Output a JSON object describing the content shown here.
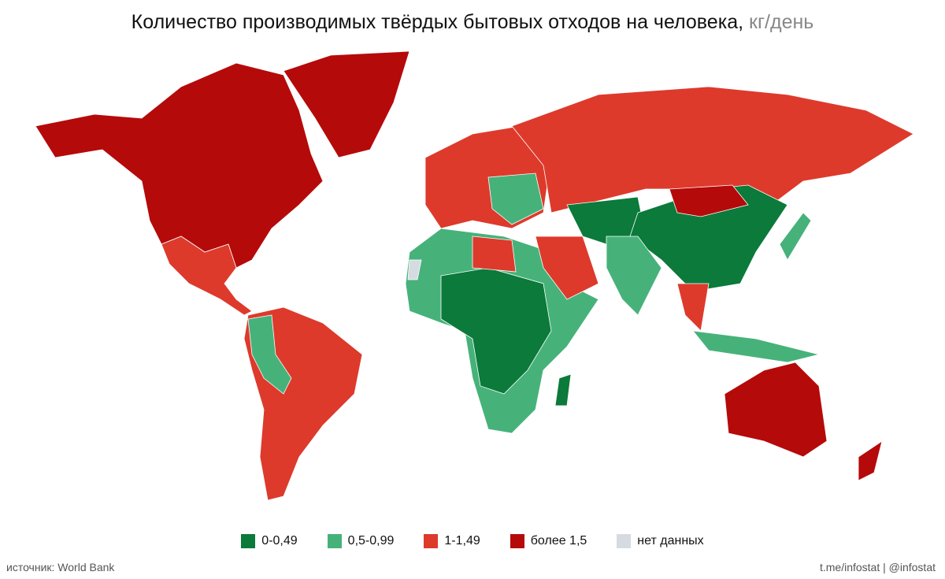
{
  "title": {
    "main": "Количество производимых твёрдых бытовых отходов на человека,",
    "unit": "кг/день"
  },
  "legend": {
    "items": [
      {
        "label": "0-0,49",
        "color": "#0b7a3a"
      },
      {
        "label": "0,5-0,99",
        "color": "#46b27a"
      },
      {
        "label": "1-1,49",
        "color": "#dd3a2c"
      },
      {
        "label": "более 1,5",
        "color": "#b50a0a"
      },
      {
        "label": "нет данных",
        "color": "#d5dbe0"
      }
    ]
  },
  "footer": {
    "source": "источник: World Bank",
    "credit": "t.me/infostat | @infostat"
  }
}
